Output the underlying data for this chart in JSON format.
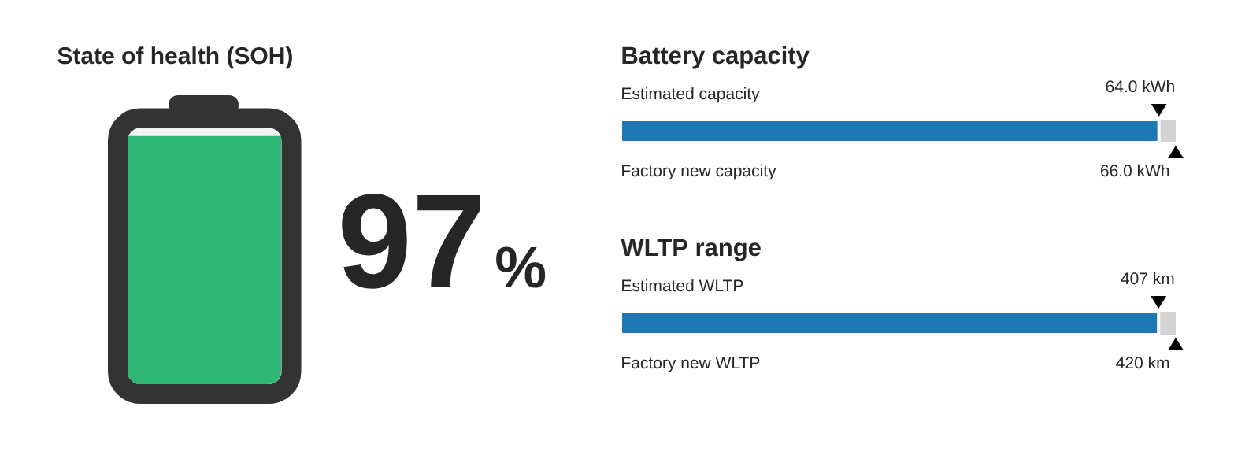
{
  "chart_data": [
    {
      "type": "other",
      "title": "State of health (SOH)",
      "values": [
        97
      ],
      "color": "#2db674",
      "data_labels": true,
      "ylabel": "%"
    },
    {
      "type": "other",
      "title": "Battery capacity",
      "categories": [
        "Estimated capacity",
        "Factory new capacity"
      ],
      "values": [
        64.0,
        66.0
      ],
      "value_labels": [
        "64.0 kWh",
        "66.0 kWh"
      ],
      "colors": [
        "#1f77b4",
        "#d3d3d3"
      ]
    },
    {
      "type": "other",
      "title": "WLTP range",
      "categories": [
        "Estimated WLTP",
        "Factory new WLTP"
      ],
      "values": [
        407,
        420
      ],
      "value_labels": [
        "407 km",
        "420 km"
      ],
      "colors": [
        "#1f77b4",
        "#d3d3d3"
      ]
    }
  ]
}
